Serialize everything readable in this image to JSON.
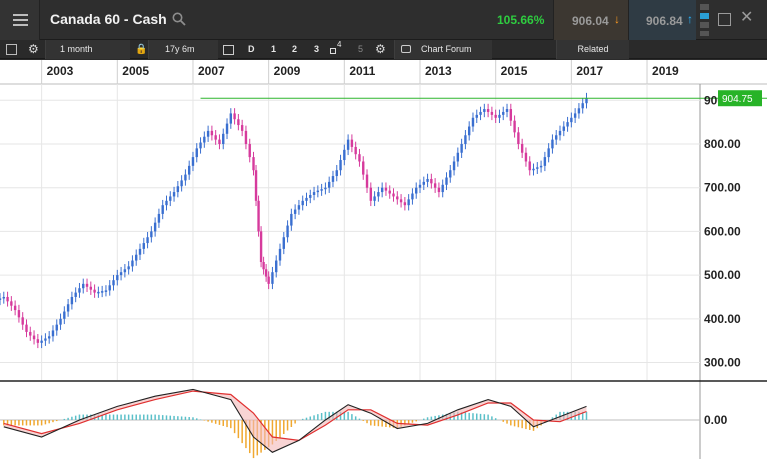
{
  "header": {
    "title": "Canada 60 - Cash",
    "change_pct": "105.66%",
    "sell_price": "906.04",
    "buy_price": "906.84",
    "colors": {
      "change": "#2ecc40",
      "sell_arrow": "#ff9a1f",
      "buy_arrow": "#2ab6ff"
    }
  },
  "toolbar": {
    "interval": "1 month",
    "range": "17y 6m",
    "period_D": "D",
    "period_1": "1",
    "period_2": "2",
    "period_3": "3",
    "period_4": "4",
    "period_5": "5",
    "forum": "Chart Forum",
    "related": "Related"
  },
  "chart_data": {
    "type": "candlestick",
    "x_ticks": [
      "2003",
      "2005",
      "2007",
      "2009",
      "2011",
      "2013",
      "2015",
      "2017",
      "2019"
    ],
    "y_ticks": [
      "300.00",
      "400.00",
      "500.00",
      "600.00",
      "700.00",
      "800.00",
      "900.00"
    ],
    "y_range": [
      260,
      935
    ],
    "x_range": [
      2001.9,
      2020.4
    ],
    "current_price": "904.75",
    "current_value": 904.75,
    "closes": [
      {
        "x": 2002.0,
        "y": 450
      },
      {
        "x": 2002.3,
        "y": 420
      },
      {
        "x": 2002.6,
        "y": 370
      },
      {
        "x": 2002.9,
        "y": 345
      },
      {
        "x": 2003.2,
        "y": 360
      },
      {
        "x": 2003.5,
        "y": 400
      },
      {
        "x": 2003.8,
        "y": 450
      },
      {
        "x": 2004.1,
        "y": 480
      },
      {
        "x": 2004.4,
        "y": 460
      },
      {
        "x": 2004.7,
        "y": 465
      },
      {
        "x": 2005.0,
        "y": 500
      },
      {
        "x": 2005.3,
        "y": 520
      },
      {
        "x": 2005.6,
        "y": 560
      },
      {
        "x": 2005.9,
        "y": 600
      },
      {
        "x": 2006.2,
        "y": 660
      },
      {
        "x": 2006.5,
        "y": 690
      },
      {
        "x": 2006.8,
        "y": 730
      },
      {
        "x": 2007.1,
        "y": 790
      },
      {
        "x": 2007.4,
        "y": 830
      },
      {
        "x": 2007.7,
        "y": 800
      },
      {
        "x": 2008.0,
        "y": 870
      },
      {
        "x": 2008.3,
        "y": 830
      },
      {
        "x": 2008.6,
        "y": 740
      },
      {
        "x": 2008.8,
        "y": 530
      },
      {
        "x": 2009.0,
        "y": 480
      },
      {
        "x": 2009.3,
        "y": 560
      },
      {
        "x": 2009.6,
        "y": 640
      },
      {
        "x": 2009.9,
        "y": 670
      },
      {
        "x": 2010.2,
        "y": 690
      },
      {
        "x": 2010.5,
        "y": 700
      },
      {
        "x": 2010.8,
        "y": 740
      },
      {
        "x": 2011.1,
        "y": 810
      },
      {
        "x": 2011.4,
        "y": 760
      },
      {
        "x": 2011.7,
        "y": 670
      },
      {
        "x": 2012.0,
        "y": 700
      },
      {
        "x": 2012.3,
        "y": 680
      },
      {
        "x": 2012.6,
        "y": 660
      },
      {
        "x": 2012.9,
        "y": 700
      },
      {
        "x": 2013.2,
        "y": 720
      },
      {
        "x": 2013.5,
        "y": 690
      },
      {
        "x": 2013.8,
        "y": 740
      },
      {
        "x": 2014.1,
        "y": 800
      },
      {
        "x": 2014.4,
        "y": 860
      },
      {
        "x": 2014.7,
        "y": 880
      },
      {
        "x": 2015.0,
        "y": 860
      },
      {
        "x": 2015.3,
        "y": 880
      },
      {
        "x": 2015.6,
        "y": 800
      },
      {
        "x": 2015.9,
        "y": 740
      },
      {
        "x": 2016.2,
        "y": 750
      },
      {
        "x": 2016.5,
        "y": 810
      },
      {
        "x": 2016.8,
        "y": 840
      },
      {
        "x": 2017.1,
        "y": 870
      },
      {
        "x": 2017.4,
        "y": 905
      }
    ],
    "indicator": {
      "y_tick": "0.00",
      "macd": [
        {
          "x": 2002.0,
          "y": -0.2
        },
        {
          "x": 2003.0,
          "y": -0.5
        },
        {
          "x": 2004.0,
          "y": 0.0
        },
        {
          "x": 2005.0,
          "y": 0.4
        },
        {
          "x": 2006.0,
          "y": 0.7
        },
        {
          "x": 2007.0,
          "y": 0.9
        },
        {
          "x": 2008.0,
          "y": 0.6
        },
        {
          "x": 2008.6,
          "y": -0.5
        },
        {
          "x": 2009.1,
          "y": -0.95
        },
        {
          "x": 2009.8,
          "y": -0.6
        },
        {
          "x": 2010.5,
          "y": 0.0
        },
        {
          "x": 2011.1,
          "y": 0.45
        },
        {
          "x": 2011.7,
          "y": 0.2
        },
        {
          "x": 2012.4,
          "y": -0.25
        },
        {
          "x": 2013.2,
          "y": -0.1
        },
        {
          "x": 2014.0,
          "y": 0.3
        },
        {
          "x": 2014.8,
          "y": 0.6
        },
        {
          "x": 2015.4,
          "y": 0.4
        },
        {
          "x": 2016.0,
          "y": -0.2
        },
        {
          "x": 2016.7,
          "y": 0.1
        },
        {
          "x": 2017.4,
          "y": 0.4
        }
      ],
      "signal": [
        {
          "x": 2002.0,
          "y": -0.1
        },
        {
          "x": 2003.0,
          "y": -0.4
        },
        {
          "x": 2004.0,
          "y": -0.1
        },
        {
          "x": 2005.0,
          "y": 0.3
        },
        {
          "x": 2006.0,
          "y": 0.6
        },
        {
          "x": 2007.0,
          "y": 0.85
        },
        {
          "x": 2008.0,
          "y": 0.75
        },
        {
          "x": 2008.6,
          "y": 0.2
        },
        {
          "x": 2009.1,
          "y": -0.5
        },
        {
          "x": 2009.8,
          "y": -0.6
        },
        {
          "x": 2010.5,
          "y": -0.15
        },
        {
          "x": 2011.1,
          "y": 0.3
        },
        {
          "x": 2011.7,
          "y": 0.3
        },
        {
          "x": 2012.4,
          "y": -0.1
        },
        {
          "x": 2013.2,
          "y": -0.15
        },
        {
          "x": 2014.0,
          "y": 0.15
        },
        {
          "x": 2014.8,
          "y": 0.5
        },
        {
          "x": 2015.4,
          "y": 0.5
        },
        {
          "x": 2016.0,
          "y": 0.0
        },
        {
          "x": 2016.7,
          "y": -0.05
        },
        {
          "x": 2017.4,
          "y": 0.25
        }
      ]
    }
  }
}
